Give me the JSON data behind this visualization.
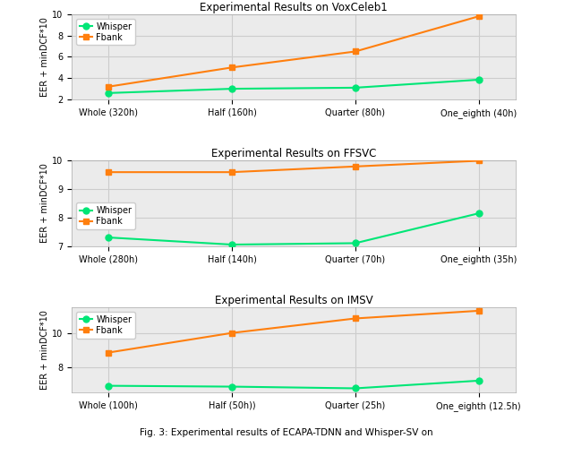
{
  "plots": [
    {
      "title": "Experimental Results on VoxCeleb1",
      "xlabel_ticks": [
        "Whole (320h)",
        "Half (160h)",
        "Quarter (80h)",
        "One_eighth (40h)"
      ],
      "whisper": [
        2.6,
        3.0,
        3.1,
        3.85
      ],
      "fbank": [
        3.2,
        5.0,
        6.5,
        9.8
      ],
      "ylim": [
        2,
        10
      ],
      "yticks": [
        2,
        4,
        6,
        8,
        10
      ],
      "ylabel": "EER + minDCF*10"
    },
    {
      "title": "Experimental Results on FFSVC",
      "xlabel_ticks": [
        "Whole (280h)",
        "Half (140h)",
        "Quarter (70h)",
        "One_eighth (35h)"
      ],
      "whisper": [
        7.3,
        7.05,
        7.1,
        8.15
      ],
      "fbank": [
        9.6,
        9.6,
        9.8,
        10.0
      ],
      "ylim": [
        7,
        10
      ],
      "yticks": [
        7,
        8,
        9,
        10
      ],
      "ylabel": "EER + minDCF*10"
    },
    {
      "title": "Experimental Results on IMSV",
      "xlabel_ticks": [
        "Whole (100h)",
        "Half (50h))",
        "Quarter (25h)",
        "One_eighth (12.5h)"
      ],
      "whisper": [
        6.9,
        6.85,
        6.75,
        7.2
      ],
      "fbank": [
        8.85,
        10.0,
        10.85,
        11.3
      ],
      "ylim": [
        6.5,
        11.5
      ],
      "yticks": [
        8,
        10
      ],
      "ylabel": "EER + minDCF*10"
    }
  ],
  "whisper_color": "#00e676",
  "fbank_color": "#ff7f0e",
  "whisper_marker": "o",
  "fbank_marker": "s",
  "linewidth": 1.5,
  "markersize": 5,
  "grid_color": "#cccccc",
  "bg_color": "#ebebeb",
  "fig_width": 6.4,
  "fig_height": 5.28,
  "caption_text": "Fig. 3: Experimental results of ECAPA-TDNN and Whi..."
}
